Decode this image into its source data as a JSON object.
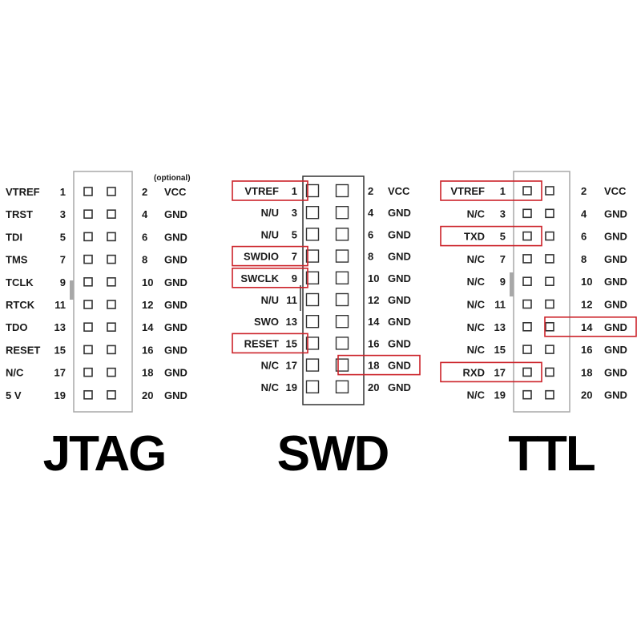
{
  "colors": {
    "highlight": "#cc2229",
    "pin": "#333333",
    "frame": "#a8a8a8",
    "swd_frame": "#333333",
    "text": "#1a1a1a"
  },
  "jtag": {
    "title": "JTAG",
    "optional_note": "(optional)",
    "left": [
      {
        "name": "VTREF",
        "pin": "1"
      },
      {
        "name": "TRST",
        "pin": "3"
      },
      {
        "name": "TDI",
        "pin": "5"
      },
      {
        "name": "TMS",
        "pin": "7"
      },
      {
        "name": "TCLK",
        "pin": "9"
      },
      {
        "name": "RTCK",
        "pin": "11"
      },
      {
        "name": "TDO",
        "pin": "13"
      },
      {
        "name": "RESET",
        "pin": "15"
      },
      {
        "name": "N/C",
        "pin": "17"
      },
      {
        "name": "5 V",
        "pin": "19"
      }
    ],
    "right": [
      {
        "pin": "2",
        "name": "VCC"
      },
      {
        "pin": "4",
        "name": "GND"
      },
      {
        "pin": "6",
        "name": "GND"
      },
      {
        "pin": "8",
        "name": "GND"
      },
      {
        "pin": "10",
        "name": "GND"
      },
      {
        "pin": "12",
        "name": "GND"
      },
      {
        "pin": "14",
        "name": "GND"
      },
      {
        "pin": "16",
        "name": "GND"
      },
      {
        "pin": "18",
        "name": "GND"
      },
      {
        "pin": "20",
        "name": "GND"
      }
    ]
  },
  "swd": {
    "title": "SWD",
    "left": [
      {
        "name": "VTREF",
        "pin": "1",
        "hl": true
      },
      {
        "name": "N/U",
        "pin": "3"
      },
      {
        "name": "N/U",
        "pin": "5"
      },
      {
        "name": "SWDIO",
        "pin": "7",
        "hl": true
      },
      {
        "name": "SWCLK",
        "pin": "9",
        "hl": true
      },
      {
        "name": "N/U",
        "pin": "11"
      },
      {
        "name": "SWO",
        "pin": "13"
      },
      {
        "name": "RESET",
        "pin": "15",
        "hl": true
      },
      {
        "name": "N/C",
        "pin": "17"
      },
      {
        "name": "N/C",
        "pin": "19"
      }
    ],
    "right": [
      {
        "pin": "2",
        "name": "VCC"
      },
      {
        "pin": "4",
        "name": "GND"
      },
      {
        "pin": "6",
        "name": "GND"
      },
      {
        "pin": "8",
        "name": "GND"
      },
      {
        "pin": "10",
        "name": "GND"
      },
      {
        "pin": "12",
        "name": "GND"
      },
      {
        "pin": "14",
        "name": "GND"
      },
      {
        "pin": "16",
        "name": "GND"
      },
      {
        "pin": "18",
        "name": "GND",
        "hl": true
      },
      {
        "pin": "20",
        "name": "GND"
      }
    ]
  },
  "ttl": {
    "title": "TTL",
    "left": [
      {
        "name": "VTREF",
        "pin": "1",
        "hl": true
      },
      {
        "name": "N/C",
        "pin": "3"
      },
      {
        "name": "TXD",
        "pin": "5",
        "hl": true
      },
      {
        "name": "N/C",
        "pin": "7"
      },
      {
        "name": "N/C",
        "pin": "9"
      },
      {
        "name": "N/C",
        "pin": "11"
      },
      {
        "name": "N/C",
        "pin": "13"
      },
      {
        "name": "N/C",
        "pin": "15"
      },
      {
        "name": "RXD",
        "pin": "17",
        "hl": true
      },
      {
        "name": "N/C",
        "pin": "19"
      }
    ],
    "right": [
      {
        "pin": "2",
        "name": "VCC"
      },
      {
        "pin": "4",
        "name": "GND"
      },
      {
        "pin": "6",
        "name": "GND"
      },
      {
        "pin": "8",
        "name": "GND"
      },
      {
        "pin": "10",
        "name": "GND"
      },
      {
        "pin": "12",
        "name": "GND"
      },
      {
        "pin": "14",
        "name": "GND",
        "hl": true
      },
      {
        "pin": "16",
        "name": "GND"
      },
      {
        "pin": "18",
        "name": "GND"
      },
      {
        "pin": "20",
        "name": "GND"
      }
    ]
  }
}
